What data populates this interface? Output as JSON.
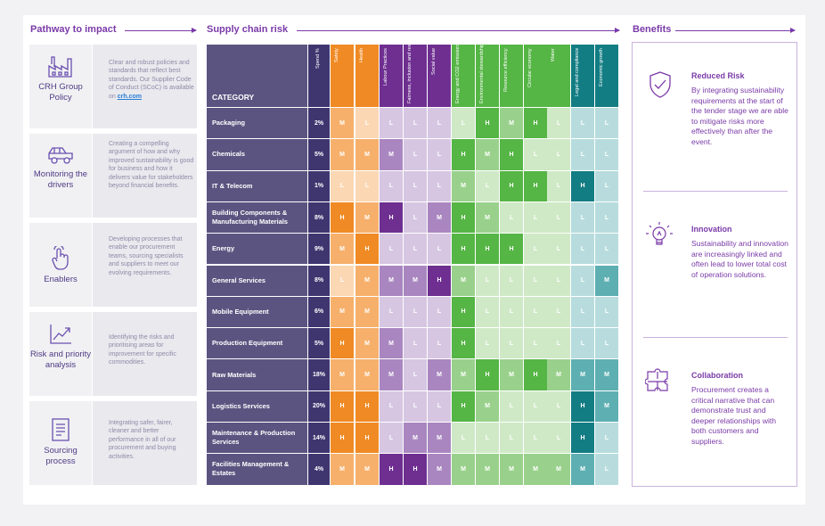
{
  "sections": {
    "pathway": "Pathway to impact",
    "supply": "Supply chain risk",
    "benefits": "Benefits"
  },
  "pathway": [
    {
      "title": "CRH Group Policy",
      "icon": "factory-icon",
      "text_before": "Clear and robust policies and standards that reflect best standards. Our Supplier Code of Conduct (SCoC) is available on",
      "link": "crh.com"
    },
    {
      "title": "Monitoring the drivers",
      "icon": "truck-icon",
      "text_before": "Creating a compelling argument of how and why improved sustainability is good for business and how it delivers value for stakeholders beyond financial benefits.",
      "link": ""
    },
    {
      "title": "Enablers",
      "icon": "hand-pointer-icon",
      "text_before": "Developing processes that enable our procurement teams, sourcing specialists and suppliers to meet our evolving requirements.",
      "link": ""
    },
    {
      "title": "Risk and priority analysis",
      "icon": "trend-chart-icon",
      "text_before": "Identifying the risks and prioritising areas for improvement for specific commodities.",
      "link": ""
    },
    {
      "title": "Sourcing process",
      "icon": "document-icon",
      "text_before": "Integrating safer, fairer, cleaner and better performance in all of our procurement and buying activities.",
      "link": ""
    }
  ],
  "table": {
    "category_header": "CATEGORY",
    "spend_header": "Spend %",
    "columns": [
      {
        "label": "Safety",
        "family": "orange"
      },
      {
        "label": "Health",
        "family": "orange"
      },
      {
        "label": "Labour Practices",
        "family": "purple"
      },
      {
        "label": "Fairness, inclusion and respect",
        "family": "purple"
      },
      {
        "label": "Social value",
        "family": "purple"
      },
      {
        "label": "Energy and CO2 emissions",
        "family": "green"
      },
      {
        "label": "Environmental stewardship",
        "family": "green"
      },
      {
        "label": "Resource efficiency",
        "family": "green"
      },
      {
        "label": "Circular economy",
        "family": "green"
      },
      {
        "label": "Water",
        "family": "green"
      },
      {
        "label": "Legal and compliance",
        "family": "teal"
      },
      {
        "label": "Economic growth",
        "family": "teal"
      }
    ],
    "rows": [
      {
        "category": "Packaging",
        "spend": "2%",
        "ratings": [
          "M",
          "L",
          "L",
          "L",
          "L",
          "L",
          "H",
          "M",
          "H",
          "L",
          "L",
          "L"
        ]
      },
      {
        "category": "Chemicals",
        "spend": "5%",
        "ratings": [
          "M",
          "M",
          "M",
          "L",
          "L",
          "H",
          "M",
          "H",
          "L",
          "L",
          "L",
          "L"
        ]
      },
      {
        "category": "IT & Telecom",
        "spend": "1%",
        "ratings": [
          "L",
          "L",
          "L",
          "L",
          "L",
          "M",
          "L",
          "H",
          "H",
          "L",
          "H",
          "L"
        ]
      },
      {
        "category": "Building Components & Manufacturing Materials",
        "spend": "8%",
        "ratings": [
          "H",
          "M",
          "H",
          "L",
          "M",
          "H",
          "M",
          "L",
          "L",
          "L",
          "L",
          "L"
        ]
      },
      {
        "category": "Energy",
        "spend": "9%",
        "ratings": [
          "M",
          "H",
          "L",
          "L",
          "L",
          "H",
          "H",
          "H",
          "L",
          "L",
          "L",
          "L"
        ]
      },
      {
        "category": "General Services",
        "spend": "8%",
        "ratings": [
          "L",
          "M",
          "M",
          "M",
          "H",
          "M",
          "L",
          "L",
          "L",
          "L",
          "L",
          "M"
        ]
      },
      {
        "category": "Mobile Equipment",
        "spend": "6%",
        "ratings": [
          "M",
          "M",
          "L",
          "L",
          "L",
          "H",
          "L",
          "L",
          "L",
          "L",
          "L",
          "L"
        ]
      },
      {
        "category": "Production Equipment",
        "spend": "5%",
        "ratings": [
          "H",
          "M",
          "M",
          "L",
          "L",
          "H",
          "L",
          "L",
          "L",
          "L",
          "L",
          "L"
        ]
      },
      {
        "category": "Raw Materials",
        "spend": "18%",
        "ratings": [
          "M",
          "M",
          "M",
          "L",
          "M",
          "M",
          "H",
          "M",
          "H",
          "M",
          "M",
          "M"
        ]
      },
      {
        "category": "Logistics Services",
        "spend": "20%",
        "ratings": [
          "H",
          "H",
          "L",
          "L",
          "L",
          "H",
          "M",
          "L",
          "L",
          "L",
          "H",
          "M"
        ]
      },
      {
        "category": "Maintenance & Production Services",
        "spend": "14%",
        "ratings": [
          "H",
          "H",
          "L",
          "M",
          "M",
          "L",
          "L",
          "L",
          "L",
          "L",
          "H",
          "L"
        ]
      },
      {
        "category": "Facilities Management & Estates",
        "spend": "4%",
        "ratings": [
          "M",
          "M",
          "H",
          "H",
          "M",
          "M",
          "M",
          "M",
          "M",
          "M",
          "M",
          "L"
        ]
      }
    ]
  },
  "colors": {
    "orange": {
      "header": "#f08a24",
      "H": "#f08a24",
      "M": "#f6b06b",
      "L": "#fbd7b3"
    },
    "purple": {
      "header": "#6e2f91",
      "H": "#6e2f91",
      "M": "#a986c0",
      "L": "#d6c6e2"
    },
    "green": {
      "header": "#55b545",
      "H": "#55b545",
      "M": "#99d18c",
      "L": "#cfe9c6"
    },
    "teal": {
      "header": "#127d83",
      "H": "#127d83",
      "M": "#5eafb2",
      "L": "#b8dcdd"
    }
  },
  "benefits": [
    {
      "title": "Reduced Risk",
      "icon": "shield-check-icon",
      "text": "By integrating sustainability requirements at the start of the tender stage we are able to mitigate risks more effectively than after the event."
    },
    {
      "title": "Innovation",
      "icon": "lightbulb-icon",
      "text": "Sustainability and innovation are increasingly linked and often lead to lower total cost of operation solutions."
    },
    {
      "title": "Collaboration",
      "icon": "puzzle-icon",
      "text": "Procurement creates a critical narrative that can demonstrate trust and deeper relationships with both customers and suppliers."
    }
  ]
}
